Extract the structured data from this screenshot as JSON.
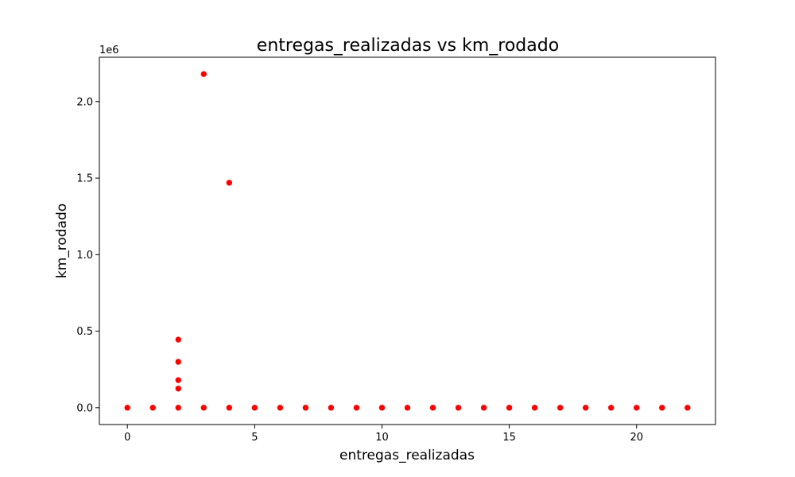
{
  "chart_data": {
    "type": "scatter",
    "title": "entregas_realizadas vs km_rodado",
    "xlabel": "entregas_realizadas",
    "ylabel": "km_rodado",
    "y_offset_label": "1e6",
    "xlim": [
      -1.1,
      23.1
    ],
    "ylim": [
      -110000,
      2290000
    ],
    "x_ticks": [
      0,
      5,
      10,
      15,
      20
    ],
    "x_tick_labels": [
      "0",
      "5",
      "10",
      "15",
      "20"
    ],
    "y_ticks": [
      0,
      500000,
      1000000,
      1500000,
      2000000
    ],
    "y_tick_labels": [
      "0.0",
      "0.5",
      "1.0",
      "1.5",
      "2.0"
    ],
    "grid": false,
    "marker_color": "#ff0000",
    "points": [
      {
        "x": 0,
        "y": 0
      },
      {
        "x": 1,
        "y": 0
      },
      {
        "x": 2,
        "y": 0
      },
      {
        "x": 2,
        "y": 125000
      },
      {
        "x": 2,
        "y": 180000
      },
      {
        "x": 2,
        "y": 300000
      },
      {
        "x": 2,
        "y": 445000
      },
      {
        "x": 3,
        "y": 0
      },
      {
        "x": 3,
        "y": 2180000
      },
      {
        "x": 4,
        "y": 0
      },
      {
        "x": 4,
        "y": 1470000
      },
      {
        "x": 5,
        "y": 0
      },
      {
        "x": 6,
        "y": 0
      },
      {
        "x": 7,
        "y": 0
      },
      {
        "x": 8,
        "y": 0
      },
      {
        "x": 9,
        "y": 0
      },
      {
        "x": 10,
        "y": 0
      },
      {
        "x": 11,
        "y": 0
      },
      {
        "x": 12,
        "y": 0
      },
      {
        "x": 13,
        "y": 0
      },
      {
        "x": 14,
        "y": 0
      },
      {
        "x": 15,
        "y": 0
      },
      {
        "x": 16,
        "y": 0
      },
      {
        "x": 17,
        "y": 0
      },
      {
        "x": 18,
        "y": 0
      },
      {
        "x": 19,
        "y": 0
      },
      {
        "x": 20,
        "y": 0
      },
      {
        "x": 21,
        "y": 0
      },
      {
        "x": 22,
        "y": 0
      }
    ]
  }
}
